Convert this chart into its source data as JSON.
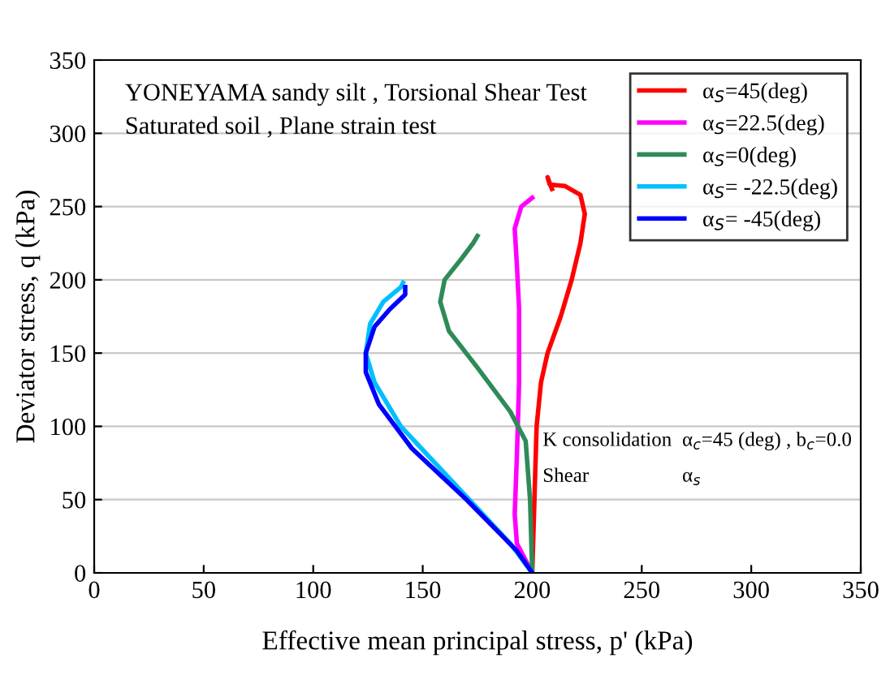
{
  "chart_data": {
    "type": "line",
    "xlabel": "Effective mean principal stress, p' (kPa)",
    "ylabel": "Deviator stress, q (kPa)",
    "xlim": [
      0,
      350
    ],
    "ylim": [
      0,
      350
    ],
    "xticks": [
      0,
      50,
      100,
      150,
      200,
      250,
      300,
      350
    ],
    "yticks": [
      0,
      50,
      100,
      150,
      200,
      250,
      300,
      350
    ],
    "grid": "y",
    "legend": "top right",
    "line_style": "solid",
    "marker": "none",
    "annotations": [
      "YONEYAMA sandy silt , Torsional Shear Test",
      "Saturated soil , Plane strain test",
      "K consolidation",
      "α$_{c}$=45 (deg) , b$_{c}$=0.0",
      "Shear",
      "α$_{s}$"
    ],
    "series": [
      {
        "name": "α$_{S}$=45(deg)",
        "color": "#ff0000",
        "x": [
          200,
          201,
          202,
          204,
          207,
          213,
          218,
          222,
          224,
          222,
          215,
          208,
          207,
          209
        ],
        "values": [
          0,
          50,
          100,
          130,
          150,
          175,
          200,
          225,
          245,
          258,
          264,
          265,
          270,
          262
        ]
      },
      {
        "name": "α$_{S}$=22.5(deg)",
        "color": "#ff00ff",
        "x": [
          200,
          193,
          192,
          193,
          194,
          194,
          193,
          192,
          195,
          200
        ],
        "values": [
          0,
          20,
          40,
          80,
          130,
          180,
          210,
          235,
          250,
          256
        ]
      },
      {
        "name": "α$_{S}$=0(deg)",
        "color": "#2e8b57",
        "x": [
          200,
          199,
          197,
          190,
          175,
          162,
          158,
          160,
          168,
          173,
          175
        ],
        "values": [
          0,
          50,
          90,
          110,
          140,
          165,
          185,
          200,
          215,
          225,
          230
        ]
      },
      {
        "name": "α$_{S}$= -22.5(deg)",
        "color": "#00bfff",
        "x": [
          200,
          190,
          165,
          140,
          128,
          124,
          126,
          132,
          140,
          141
        ],
        "values": [
          0,
          20,
          60,
          100,
          130,
          150,
          170,
          185,
          195,
          198
        ]
      },
      {
        "name": "α$_{S}$= -45(deg)",
        "color": "#0000ff",
        "x": [
          200,
          193,
          170,
          145,
          130,
          124,
          124,
          128,
          135,
          142,
          142
        ],
        "values": [
          0,
          15,
          50,
          85,
          115,
          137,
          150,
          168,
          180,
          190,
          195
        ]
      }
    ]
  }
}
